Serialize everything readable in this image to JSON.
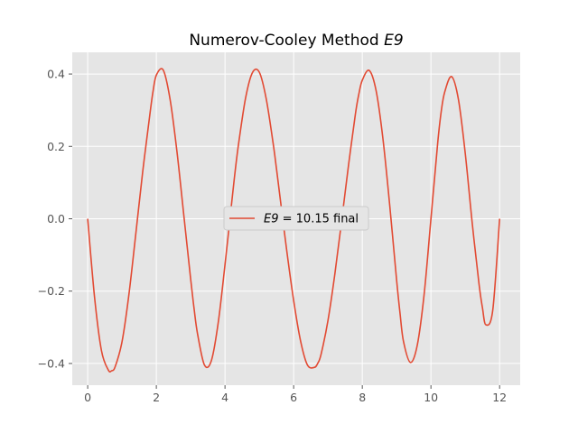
{
  "chart_data": {
    "type": "line",
    "title": "Numerov-Cooley Method E9",
    "title_prefix": "Numerov-Cooley Method ",
    "title_symbol": "E9",
    "xlabel": "",
    "ylabel": "",
    "xlim": [
      -0.45,
      12.6
    ],
    "ylim": [
      -0.46,
      0.46
    ],
    "xticks": [
      0,
      2,
      4,
      6,
      8,
      10,
      12
    ],
    "yticks": [
      -0.4,
      -0.2,
      0.0,
      0.2,
      0.4
    ],
    "xtick_labels": [
      "0",
      "2",
      "4",
      "6",
      "8",
      "10",
      "12"
    ],
    "ytick_labels": [
      "−0.4",
      "−0.2",
      "0.0",
      "0.2",
      "0.4"
    ],
    "grid": true,
    "legend_position": "center",
    "series": [
      {
        "name": "E9 = 10.15 final",
        "legend_symbol": "E9",
        "legend_rest": " = 10.15 final",
        "color": "#E24A33",
        "x": [
          0,
          0.2,
          0.4,
          0.6,
          0.7,
          0.8,
          1.0,
          1.2,
          1.4,
          1.6,
          1.8,
          1.9,
          2.0,
          2.2,
          2.4,
          2.6,
          2.8,
          3.0,
          3.1,
          3.2,
          3.4,
          3.6,
          3.8,
          4.0,
          4.2,
          4.3,
          4.4,
          4.6,
          4.8,
          5.0,
          5.2,
          5.4,
          5.5,
          5.6,
          5.8,
          6.0,
          6.2,
          6.4,
          6.6,
          6.7,
          6.8,
          7.0,
          7.2,
          7.4,
          7.6,
          7.8,
          7.9,
          8.0,
          8.2,
          8.4,
          8.6,
          8.8,
          9.0,
          9.1,
          9.2,
          9.4,
          9.6,
          9.8,
          10.0,
          10.2,
          10.3,
          10.4,
          10.6,
          10.8,
          11.0,
          11.2,
          11.4,
          11.5,
          11.6,
          11.8,
          12.0
        ],
        "y": [
          0.0,
          -0.217,
          -0.364,
          -0.418,
          -0.42,
          -0.409,
          -0.34,
          -0.21,
          -0.043,
          0.128,
          0.28,
          0.35,
          0.397,
          0.411,
          0.33,
          0.186,
          0.01,
          -0.167,
          -0.249,
          -0.318,
          -0.404,
          -0.393,
          -0.289,
          -0.127,
          0.049,
          0.135,
          0.21,
          0.334,
          0.404,
          0.405,
          0.332,
          0.21,
          0.138,
          0.062,
          -0.089,
          -0.226,
          -0.337,
          -0.404,
          -0.411,
          -0.4,
          -0.374,
          -0.281,
          -0.153,
          -0.004,
          0.149,
          0.29,
          0.345,
          0.383,
          0.41,
          0.355,
          0.222,
          0.036,
          -0.17,
          -0.262,
          -0.339,
          -0.397,
          -0.35,
          -0.21,
          0.0,
          0.213,
          0.297,
          0.35,
          0.393,
          0.33,
          0.18,
          -0.01,
          -0.18,
          -0.246,
          -0.293,
          -0.253,
          0.0
        ]
      }
    ]
  }
}
